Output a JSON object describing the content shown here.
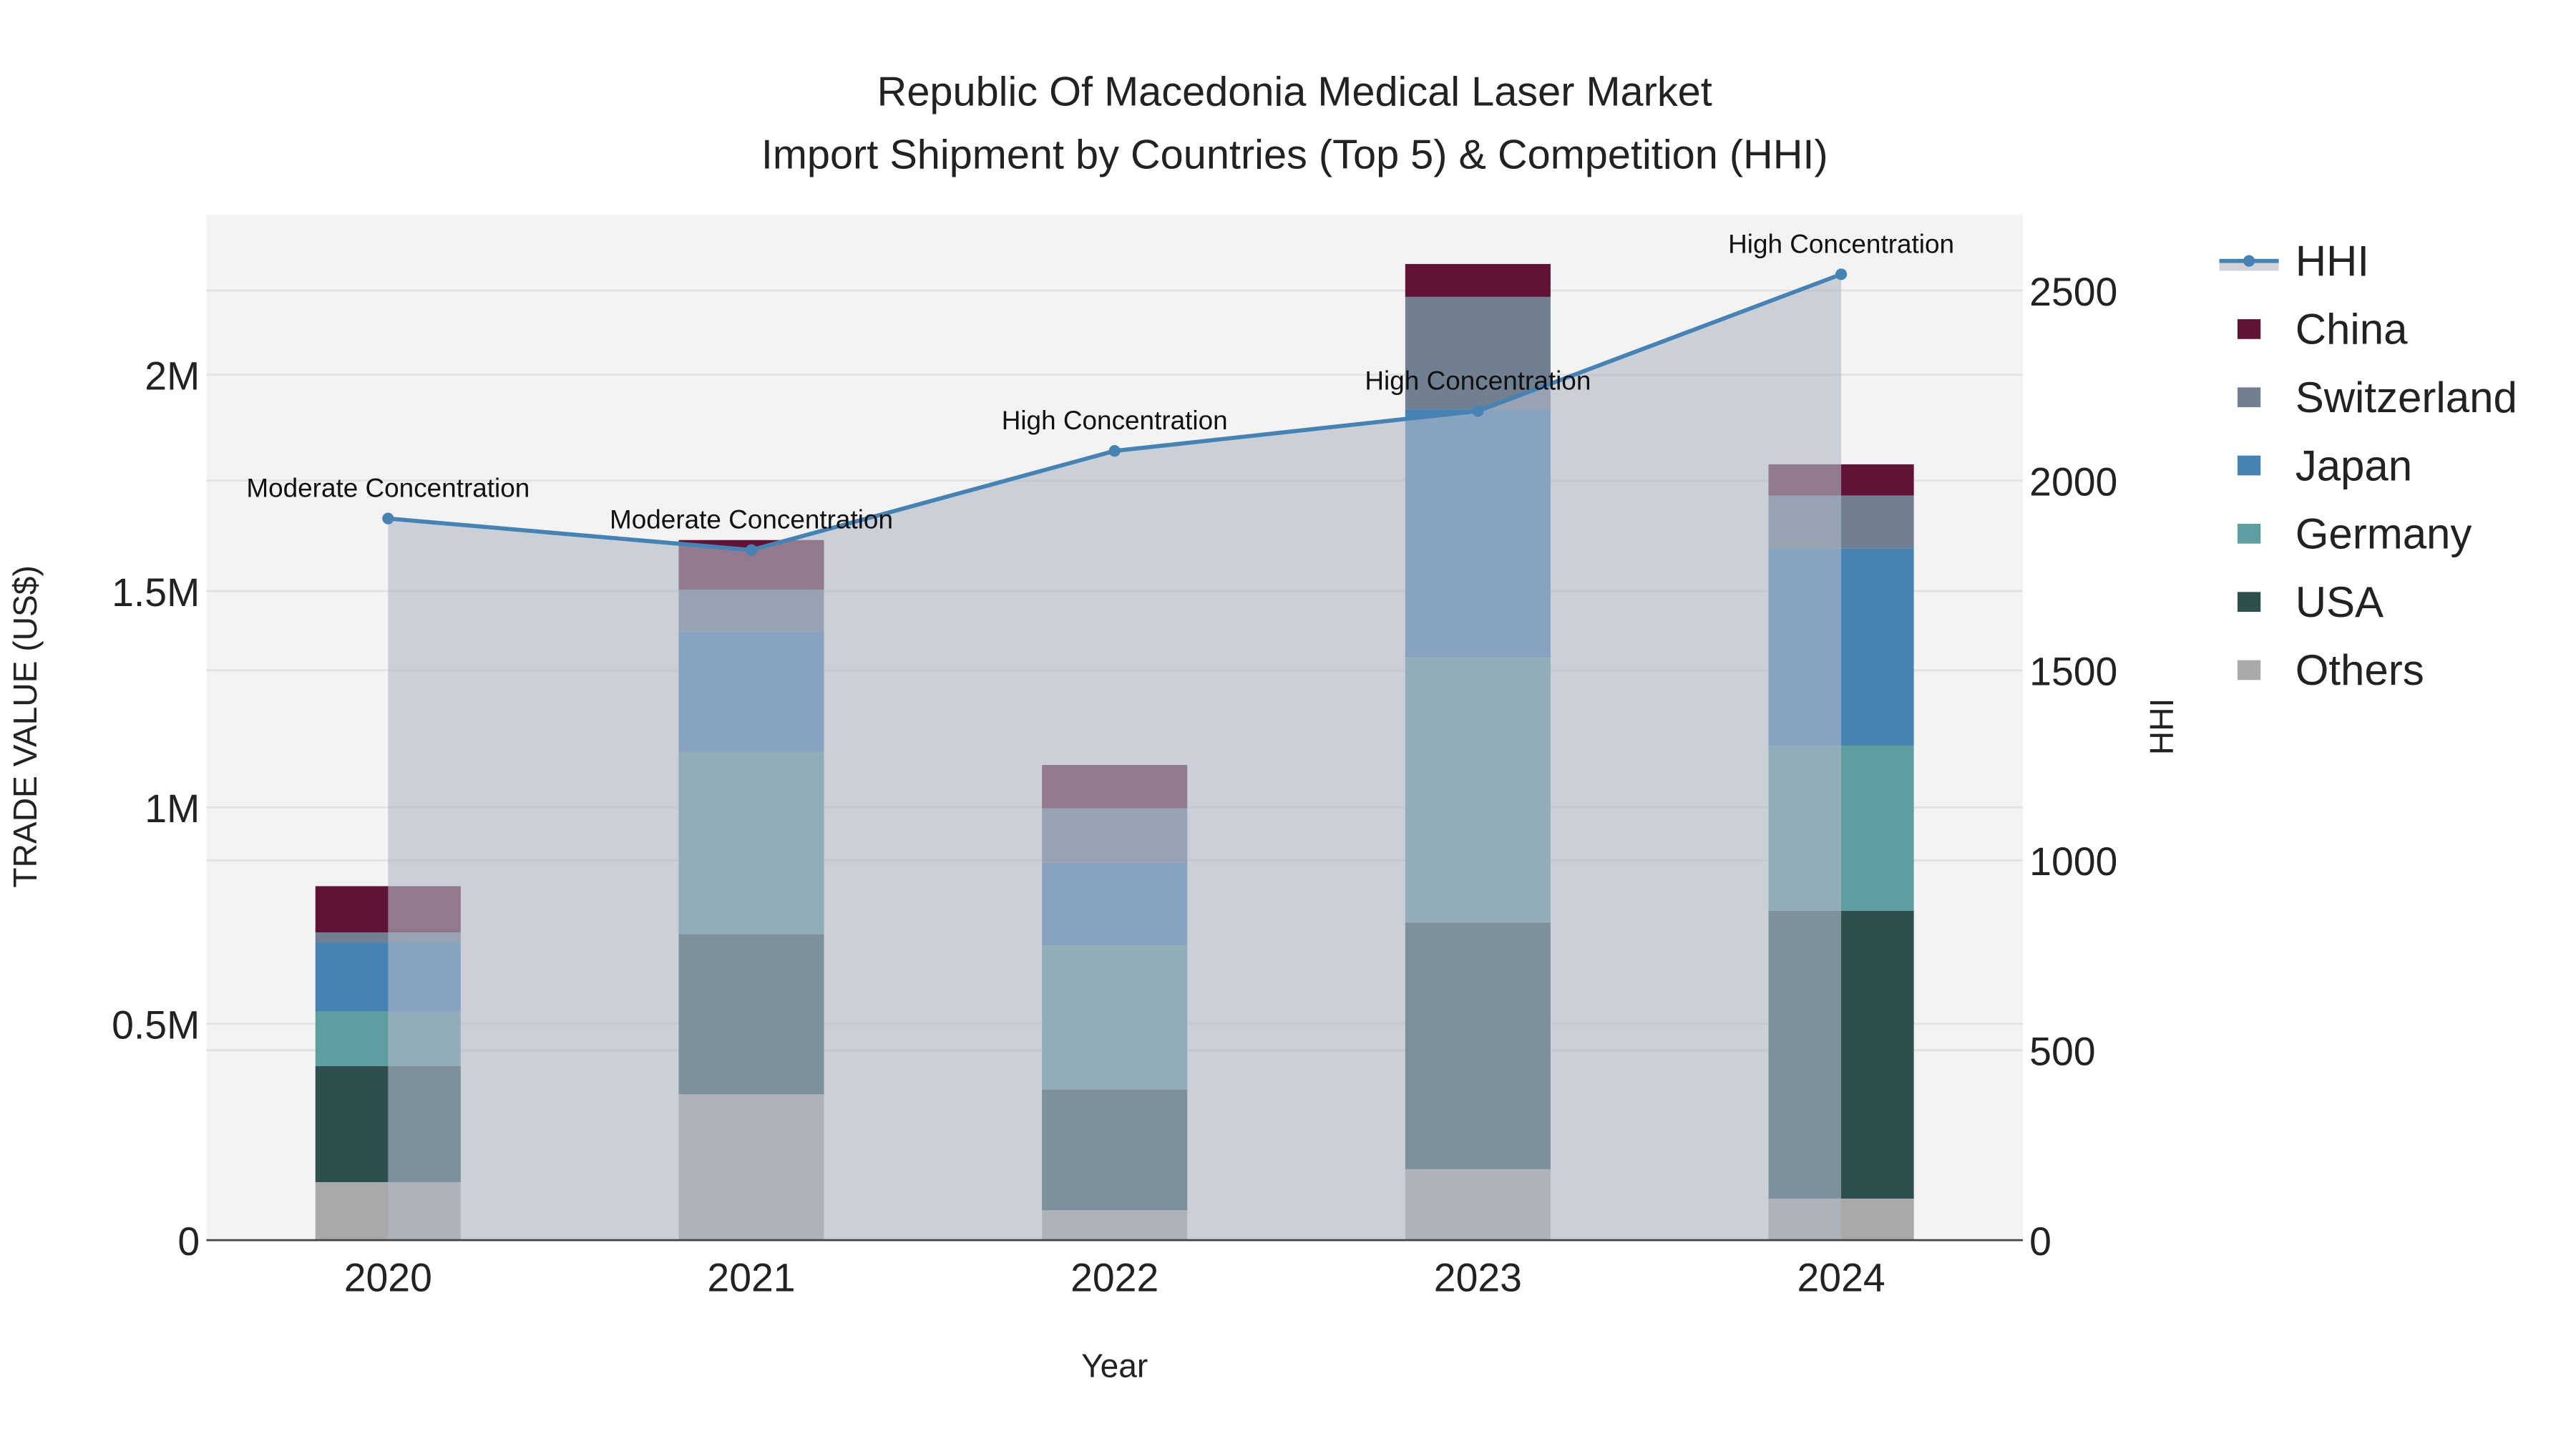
{
  "chart_data": {
    "type": "bar",
    "title_line1": "Republic Of Macedonia Medical Laser Market",
    "title_line2": "Import Shipment by Countries (Top 5) & Competition (HHI)",
    "xlabel": "Year",
    "ylabel": "TRADE VALUE (US$)",
    "y2label": "HHI",
    "categories": [
      "2020",
      "2021",
      "2022",
      "2023",
      "2024"
    ],
    "ylim": [
      0,
      2.37
    ],
    "y_unit": "M",
    "y_ticks": [
      0,
      0.5,
      1,
      1.5,
      2
    ],
    "y_tick_labels": [
      "0",
      "0.5M",
      "1M",
      "1.5M",
      "2M"
    ],
    "y2lim": [
      0,
      2700
    ],
    "y2_ticks": [
      0,
      500,
      1000,
      1500,
      2000,
      2500
    ],
    "y2_tick_labels": [
      "0",
      "500",
      "1000",
      "1500",
      "2000",
      "2500"
    ],
    "series": [
      {
        "name": "Others",
        "color": "#a9a9a9",
        "values": [
          0.134,
          0.337,
          0.069,
          0.164,
          0.096
        ]
      },
      {
        "name": "USA",
        "color": "#2f4f4f",
        "values": [
          0.268,
          0.37,
          0.279,
          0.57,
          0.665
        ]
      },
      {
        "name": "Germany",
        "color": "#5f9ea0",
        "values": [
          0.126,
          0.421,
          0.333,
          0.612,
          0.382
        ]
      },
      {
        "name": "Japan",
        "color": "#4682b4",
        "values": [
          0.16,
          0.279,
          0.191,
          0.574,
          0.455
        ]
      },
      {
        "name": "Switzerland",
        "color": "#708090",
        "values": [
          0.023,
          0.096,
          0.126,
          0.26,
          0.123
        ]
      },
      {
        "name": "China",
        "color": "#601336",
        "values": [
          0.107,
          0.115,
          0.1,
          0.076,
          0.072
        ]
      }
    ],
    "hhi": {
      "name": "HHI",
      "color": "#4682b4",
      "values": [
        1900,
        1817,
        2078,
        2183,
        2543
      ],
      "annotations": [
        "Moderate Concentration",
        "Moderate Concentration",
        "High Concentration",
        "High Concentration",
        "High Concentration"
      ]
    },
    "legend_order": [
      "HHI",
      "China",
      "Switzerland",
      "Japan",
      "Germany",
      "USA",
      "Others"
    ],
    "legend_position": "right",
    "grid": true
  }
}
